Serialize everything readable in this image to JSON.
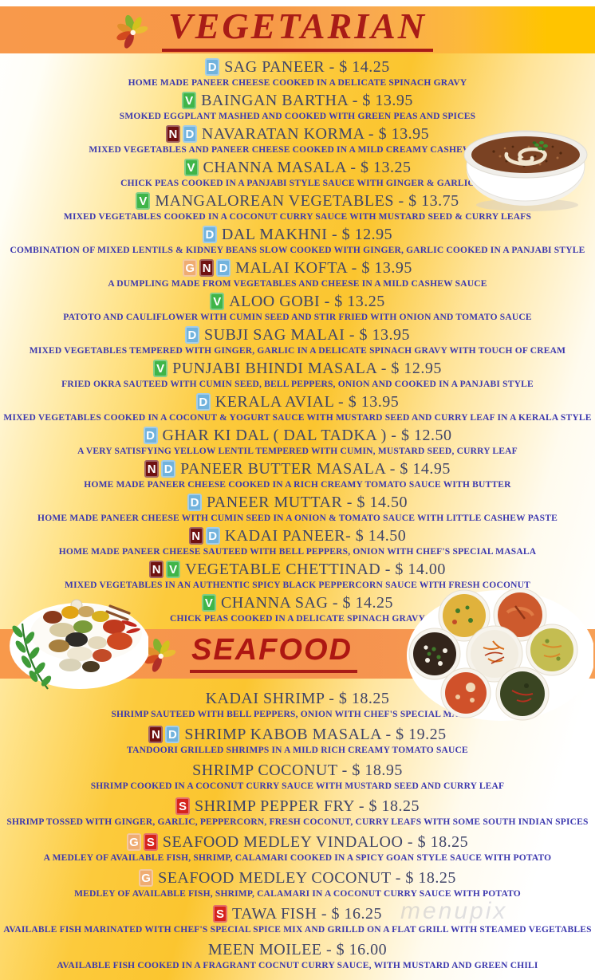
{
  "page": {
    "watermark": "menupix"
  },
  "colors": {
    "band_orange": "#f8994b",
    "band_yellow": "#ffc400",
    "title_red": "#a81c17",
    "item_title_text": "#3f4468",
    "item_description_text": "#3c38ae"
  },
  "badge_colors": {
    "D": "#72b3dd",
    "V": "#3fb549",
    "N": "#701111",
    "G": "#efac72",
    "S": "#d6231c"
  },
  "images": [
    {
      "name": "flower-logo-icon",
      "description": "multicolor flower/leaf logo beside section titles"
    },
    {
      "name": "dal-bowl-image",
      "description": "white bowl of dal with cream swirl and cilantro garnish"
    },
    {
      "name": "spice-collection-image",
      "description": "piles of colorful spices with curry leaf sprig"
    },
    {
      "name": "curry-bowls-image",
      "description": "seven bowls of curries and rice arranged in a circle"
    }
  ],
  "sections": [
    {
      "id": "vegetarian",
      "title": "VEGETARIAN",
      "items": [
        {
          "badges": [
            "D"
          ],
          "title": "SAG PANEER - $ 14.25",
          "description": "HOME MADE PANEER CHEESE COOKED IN A DELICATE SPINACH GRAVY"
        },
        {
          "badges": [
            "V"
          ],
          "title": "BAINGAN BARTHA - $ 13.95",
          "description": "SMOKED EGGPLANT MASHED AND COOKED WITH GREEN PEAS AND SPICES"
        },
        {
          "badges": [
            "N",
            "D"
          ],
          "title": "NAVARATAN KORMA - $ 13.95",
          "description": "MIXED VEGETABLES AND PANEER CHEESE COOKED IN A MILD CREAMY CASHEW SAUCE"
        },
        {
          "badges": [
            "V"
          ],
          "title": "CHANNA MASALA - $ 13.25",
          "description": "CHICK PEAS COOKED IN A PANJABI STYLE SAUCE WITH GINGER & GARLIC"
        },
        {
          "badges": [
            "V"
          ],
          "title": "MANGALOREAN VEGETABLES - $ 13.75",
          "description": "MIXED VEGETABLES COOKED IN A COCONUT CURRY SAUCE WITH MUSTARD SEED & CURRY LEAFS"
        },
        {
          "badges": [
            "D"
          ],
          "title": "DAL MAKHNI - $ 12.95",
          "description": "COMBINATION OF MIXED LENTILS & KIDNEY BEANS SLOW COOKED WITH GINGER, GARLIC COOKED IN A PANJABI STYLE"
        },
        {
          "badges": [
            "G",
            "N",
            "D"
          ],
          "title": "MALAI KOFTA - $ 13.95",
          "description": "A DUMPLING MADE FROM VEGETABLES AND CHEESE IN A MILD CASHEW SAUCE"
        },
        {
          "badges": [
            "V"
          ],
          "title": "ALOO GOBI - $ 13.25",
          "description": "PATOTO AND CAULIFLOWER WITH CUMIN SEED AND STIR FRIED WITH ONION AND TOMATO SAUCE"
        },
        {
          "badges": [
            "D"
          ],
          "title": "SUBJI SAG MALAI - $ 13.95",
          "description": "MIXED VEGETABLES TEMPERED WITH GINGER, GARLIC IN A DELICATE SPINACH GRAVY WITH TOUCH OF CREAM"
        },
        {
          "badges": [
            "V"
          ],
          "title": "PUNJABI BHINDI MASALA - $ 12.95",
          "description": "FRIED OKRA SAUTEED WITH CUMIN SEED, BELL PEPPERS, ONION AND COOKED IN A PANJABI STYLE"
        },
        {
          "badges": [
            "D"
          ],
          "title": "KERALA AVIAL - $ 13.95",
          "description": "MIXED VEGETABLES COOKED IN A COCONUT & YOGURT SAUCE WITH MUSTARD SEED AND CURRY LEAF IN A KERALA STYLE"
        },
        {
          "badges": [
            "D"
          ],
          "title": "GHAR KI DAL ( DAL TADKA ) - $ 12.50",
          "description": "A VERY SATISFYING YELLOW LENTIL TEMPERED WITH CUMIN, MUSTARD SEED, CURRY LEAF"
        },
        {
          "badges": [
            "N",
            "D"
          ],
          "title": "PANEER BUTTER MASALA - $ 14.95",
          "description": "HOME MADE PANEER CHEESE COOKED IN A RICH CREAMY TOMATO SAUCE WITH BUTTER"
        },
        {
          "badges": [
            "D"
          ],
          "title": "PANEER MUTTAR - $ 14.50",
          "description": "HOME MADE PANEER CHEESE WITH CUMIN SEED IN A ONION & TOMATO SAUCE WITH LITTLE CASHEW PASTE"
        },
        {
          "badges": [
            "N",
            "D"
          ],
          "title": "KADAI PANEER- $ 14.50",
          "description": "HOME MADE PANEER CHEESE SAUTEED WITH BELL PEPPERS, ONION WITH CHEF'S SPECIAL MASALA"
        },
        {
          "badges": [
            "N",
            "V"
          ],
          "title": "VEGETABLE CHETTINAD - $ 14.00",
          "description": "MIXED VEGETABLES IN AN AUTHENTIC SPICY BLACK PEPPERCORN SAUCE WITH FRESH COCONUT"
        },
        {
          "badges": [
            "V"
          ],
          "title": "CHANNA SAG - $ 14.25",
          "description": "CHICK PEAS COOKED IN A DELICATE SPINACH GRAVY"
        }
      ]
    },
    {
      "id": "seafood",
      "title": "SEAFOOD",
      "items": [
        {
          "badges": [],
          "title": "KADAI SHRIMP - $ 18.25",
          "description": "SHRIMP SAUTEED WITH BELL PEPPERS, ONION WITH CHEF'S SPECIAL MASALA"
        },
        {
          "badges": [
            "N",
            "D"
          ],
          "title": "SHRIMP KABOB MASALA - $ 19.25",
          "description": "TANDOORI GRILLED SHRIMPS IN A MILD RICH CREAMY TOMATO SAUCE"
        },
        {
          "badges": [],
          "title": "SHRIMP COCONUT - $ 18.95",
          "description": "SHRIMP COOKED IN A COCONUT CURRY SAUCE WITH MUSTARD SEED AND CURRY LEAF"
        },
        {
          "badges": [
            "S"
          ],
          "title": "SHRIMP PEPPER FRY - $ 18.25",
          "description": "SHRIMP TOSSED WITH GINGER, GARLIC, PEPPERCORN, FRESH COCONUT, CURRY LEAFS WITH SOME SOUTH INDIAN SPICES"
        },
        {
          "badges": [
            "G",
            "S"
          ],
          "title": "SEAFOOD MEDLEY VINDALOO - $ 18.25",
          "description": "A MEDLEY OF AVAILABLE FISH, SHRIMP, CALAMARI COOKED IN A SPICY GOAN STYLE SAUCE WITH POTATO"
        },
        {
          "badges": [
            "G"
          ],
          "title": "SEAFOOD MEDLEY COCONUT - $ 18.25",
          "description": "MEDLEY OF AVAILABLE FISH, SHRIMP, CALAMARI IN A COCONUT CURRY SAUCE WITH POTATO"
        },
        {
          "badges": [
            "S"
          ],
          "title": "TAWA FISH - $ 16.25",
          "description": "AVAILABLE FISH MARINATED WITH CHEF'S SPECIAL SPICE MIX AND GRILLD ON A FLAT GRILL WITH STEAMED VEGETABLES"
        },
        {
          "badges": [],
          "title": "MEEN MOILEE - $ 16.00",
          "description": "AVAILABLE FISH COOKED IN A FRAGRANT COCNUT CURRY SAUCE, WITH MUSTARD AND GREEN CHILI"
        }
      ]
    }
  ]
}
